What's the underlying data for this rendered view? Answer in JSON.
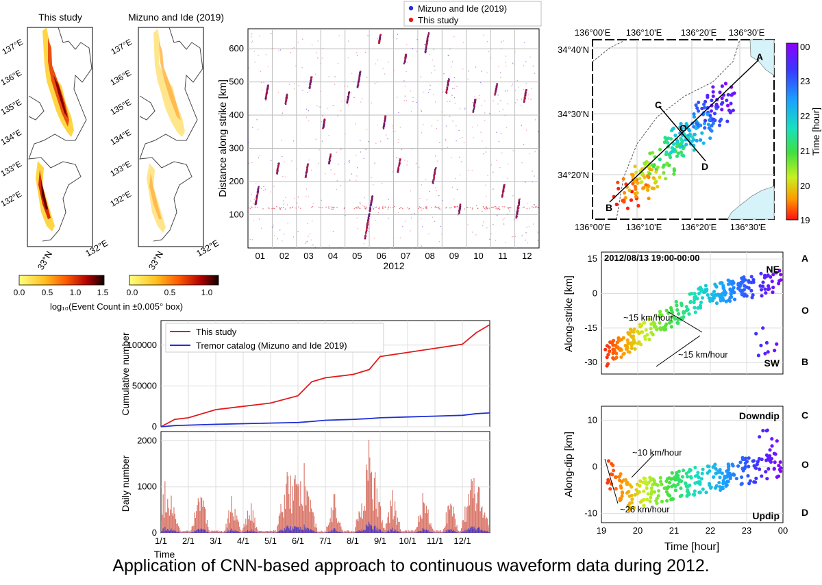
{
  "caption": "Application of CNN-based approach to continuous waveform data during 2012.",
  "maps": {
    "titles": [
      "This study",
      "Mizuno and Ide (2019)"
    ],
    "lon_ticks": [
      "137°E",
      "136°E",
      "135°E",
      "134°E",
      "133°E",
      "132°E"
    ],
    "lat_tick": "33°N",
    "lon_bottom": "132°E",
    "colorbar_ticks_left": [
      "0.0",
      "0.5",
      "1.0",
      "1.5"
    ],
    "colorbar_ticks_right": [
      "0.0",
      "0.5",
      "1.0"
    ],
    "colorbar_label": "log₁₀(Event Count in ±0.005° box)",
    "colors": {
      "low": "#ffff60",
      "mid": "#ff7a00",
      "high": "#8b0000",
      "top": "#100000"
    }
  },
  "spacetime": {
    "legend": [
      "Mizuno and Ide (2019)",
      "This study"
    ],
    "legend_colors": [
      "#1f2fd6",
      "#e21a1a"
    ],
    "ylabel": "Distance along strike [km]",
    "yticks": [
      "100",
      "200",
      "300",
      "400",
      "500",
      "600"
    ],
    "ytick_values": [
      100,
      200,
      300,
      400,
      500,
      600
    ],
    "xticks": [
      "01",
      "02",
      "03",
      "04",
      "05",
      "06",
      "07",
      "08",
      "09",
      "10",
      "11",
      "12"
    ],
    "xlabel": "2012",
    "ylim": [
      0,
      660
    ],
    "episodes": [
      {
        "month": 0.35,
        "km": 160,
        "len": 55
      },
      {
        "month": 0.75,
        "km": 470,
        "len": 45
      },
      {
        "month": 1.2,
        "km": 240,
        "len": 35
      },
      {
        "month": 1.55,
        "km": 450,
        "len": 30
      },
      {
        "month": 2.4,
        "km": 235,
        "len": 40
      },
      {
        "month": 2.55,
        "km": 500,
        "len": 35
      },
      {
        "month": 3.1,
        "km": 375,
        "len": 30
      },
      {
        "month": 3.35,
        "km": 270,
        "len": 30
      },
      {
        "month": 4.1,
        "km": 455,
        "len": 35
      },
      {
        "month": 4.55,
        "km": 510,
        "len": 50
      },
      {
        "month": 4.95,
        "km": 95,
        "len": 130
      },
      {
        "month": 5.6,
        "km": 380,
        "len": 40
      },
      {
        "month": 6.2,
        "km": 250,
        "len": 40
      },
      {
        "month": 6.45,
        "km": 570,
        "len": 30
      },
      {
        "month": 7.35,
        "km": 620,
        "len": 60
      },
      {
        "month": 7.65,
        "km": 220,
        "len": 50
      },
      {
        "month": 8.2,
        "km": 490,
        "len": 45
      },
      {
        "month": 9.3,
        "km": 430,
        "len": 40
      },
      {
        "month": 10.2,
        "km": 480,
        "len": 35
      },
      {
        "month": 10.5,
        "km": 175,
        "len": 40
      },
      {
        "month": 11.1,
        "km": 120,
        "len": 60
      },
      {
        "month": 11.4,
        "km": 460,
        "len": 40
      },
      {
        "month": 5.4,
        "km": 630,
        "len": 30
      },
      {
        "month": 8.7,
        "km": 120,
        "len": 30
      }
    ]
  },
  "cumulative": {
    "legend": [
      "This study",
      "Tremor catalog (Mizuno and Ide 2019)"
    ],
    "colors": [
      "#e21a1a",
      "#1f2fd6"
    ],
    "ylabel": "Cumulative number",
    "yticks": [
      "0",
      "50000",
      "100000"
    ],
    "ytick_values": [
      0,
      50000,
      100000
    ],
    "ylim": [
      0,
      130000
    ],
    "month_index": [
      0,
      0.5,
      1,
      2,
      3,
      4,
      5,
      5.5,
      6,
      7,
      7.6,
      8,
      9,
      10,
      11,
      11.5,
      12
    ],
    "this_study": [
      0,
      9000,
      11000,
      21000,
      25000,
      29000,
      38000,
      55000,
      60000,
      64000,
      70000,
      86000,
      91000,
      96000,
      101000,
      115000,
      125000
    ],
    "tremor_catalog": [
      0,
      1500,
      2000,
      3000,
      3800,
      4500,
      5200,
      6500,
      8000,
      9000,
      10000,
      11000,
      12000,
      13000,
      14000,
      16000,
      17000
    ]
  },
  "daily": {
    "ylabel": "Daily number",
    "yticks": [
      "0",
      "1000",
      "2000"
    ],
    "ytick_values": [
      0,
      1000,
      2000
    ],
    "ylim": [
      0,
      2200
    ],
    "xticks": [
      "1/1",
      "2/1",
      "3/1",
      "4/1",
      "5/1",
      "6/1",
      "7/1",
      "8/1",
      "9/1",
      "10/1",
      "11/1",
      "12/1"
    ],
    "xlabel": "Time",
    "bar_color": "#d9776a",
    "catalog_color": "#3a30c4",
    "bursts": [
      {
        "month": 0.2,
        "peak": 1300,
        "width": 0.5
      },
      {
        "month": 1.4,
        "peak": 1200,
        "width": 0.35
      },
      {
        "month": 2.6,
        "peak": 1000,
        "width": 0.3
      },
      {
        "month": 3.25,
        "peak": 750,
        "width": 0.3
      },
      {
        "month": 4.55,
        "peak": 1250,
        "width": 0.35
      },
      {
        "month": 5.1,
        "peak": 1900,
        "width": 0.6
      },
      {
        "month": 6.3,
        "peak": 900,
        "width": 0.3
      },
      {
        "month": 7.6,
        "peak": 2100,
        "width": 0.55
      },
      {
        "month": 8.45,
        "peak": 1000,
        "width": 0.3
      },
      {
        "month": 9.6,
        "peak": 1050,
        "width": 0.35
      },
      {
        "month": 10.55,
        "peak": 900,
        "width": 0.3
      },
      {
        "month": 11.45,
        "peak": 1600,
        "width": 0.55
      }
    ]
  },
  "zoom_map": {
    "lon_ticks_top": [
      "136°00'E",
      "136°10'E",
      "136°20'E",
      "136°30'E"
    ],
    "lon_ticks_bottom": [
      "136°00'E",
      "136°10'E",
      "136°20'E",
      "136°30'E"
    ],
    "lat_ticks": [
      "34°40'N",
      "34°30'N",
      "34°20'N"
    ],
    "points": [
      "A",
      "B",
      "C",
      "D",
      "O"
    ],
    "colorbar_label": "Time [hour]",
    "colorbar_ticks": [
      "00",
      "23",
      "22",
      "21",
      "20",
      "19"
    ]
  },
  "along_strike": {
    "title": "2012/08/13 19:00-00:00",
    "ylabel": "Along-strike [km]",
    "yticks": [
      "15",
      "0",
      "-15",
      "-30"
    ],
    "ytick_values": [
      15,
      0,
      -15,
      -30
    ],
    "ylim": [
      -35,
      18
    ],
    "ne": "NE",
    "sw": "SW",
    "side_labels": [
      "A",
      "O",
      "B"
    ],
    "annotations": [
      "~15 km/hour",
      "~15 km/hour"
    ]
  },
  "along_dip": {
    "ylabel": "Along-dip [km]",
    "yticks": [
      "10",
      "0",
      "-10"
    ],
    "ytick_values": [
      10,
      0,
      -10
    ],
    "ylim": [
      -12,
      13
    ],
    "downdip": "Downdip",
    "updip": "Updip",
    "side_labels": [
      "C",
      "O",
      "D"
    ],
    "annotations": [
      "~10 km/hour",
      "~26 km/hour"
    ],
    "xticks": [
      "19",
      "20",
      "21",
      "22",
      "23",
      "00"
    ],
    "xtick_values": [
      19,
      20,
      21,
      22,
      23,
      24
    ],
    "xlabel": "Time [hour]"
  }
}
